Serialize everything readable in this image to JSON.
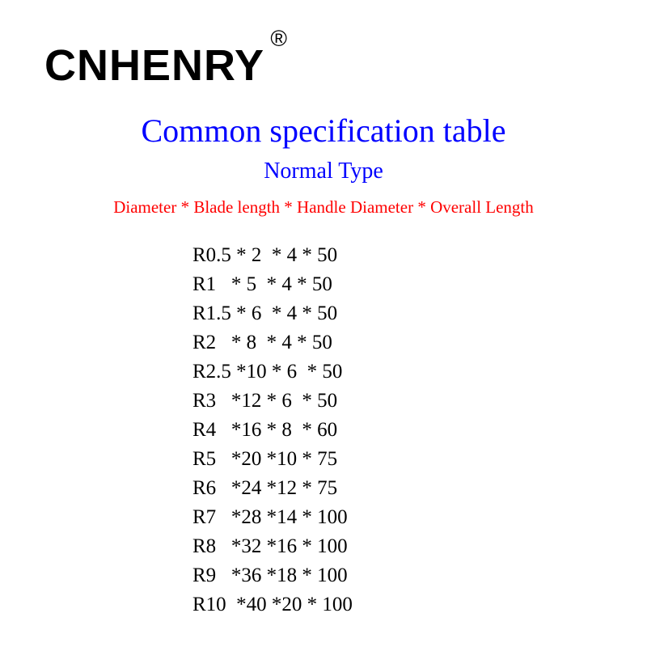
{
  "brand": {
    "name": "CNHENRY",
    "registered_symbol": "®"
  },
  "title": "Common specification table",
  "subtitle": "Normal Type",
  "column_legend": "Diameter * Blade length * Handle Diameter * Overall Length",
  "colors": {
    "brand_text": "#000000",
    "title_text": "#0000ff",
    "subtitle_text": "#0000ff",
    "legend_text": "#ff0000",
    "data_text": "#000000",
    "background": "#ffffff"
  },
  "typography": {
    "brand_fontsize": 54,
    "title_fontsize": 40,
    "subtitle_fontsize": 28,
    "legend_fontsize": 21,
    "data_fontsize": 25,
    "brand_font": "Arial",
    "content_font": "Times New Roman"
  },
  "specs": {
    "type": "table",
    "columns": [
      "Diameter",
      "Blade length",
      "Handle Diameter",
      "Overall Length"
    ],
    "separator": "*",
    "rows": [
      {
        "diameter": "R0.5",
        "blade_length": "2",
        "handle_diameter": "4",
        "overall_length": "50",
        "formatted": "R0.5 * 2  * 4 * 50"
      },
      {
        "diameter": "R1",
        "blade_length": "5",
        "handle_diameter": "4",
        "overall_length": "50",
        "formatted": "R1   * 5  * 4 * 50"
      },
      {
        "diameter": "R1.5",
        "blade_length": "6",
        "handle_diameter": "4",
        "overall_length": "50",
        "formatted": "R1.5 * 6  * 4 * 50"
      },
      {
        "diameter": "R2",
        "blade_length": "8",
        "handle_diameter": "4",
        "overall_length": "50",
        "formatted": "R2   * 8  * 4 * 50"
      },
      {
        "diameter": "R2.5",
        "blade_length": "10",
        "handle_diameter": "6",
        "overall_length": "50",
        "formatted": "R2.5 *10 * 6  * 50"
      },
      {
        "diameter": "R3",
        "blade_length": "12",
        "handle_diameter": "6",
        "overall_length": "50",
        "formatted": "R3   *12 * 6  * 50"
      },
      {
        "diameter": "R4",
        "blade_length": "16",
        "handle_diameter": "8",
        "overall_length": "60",
        "formatted": "R4   *16 * 8  * 60"
      },
      {
        "diameter": "R5",
        "blade_length": "20",
        "handle_diameter": "10",
        "overall_length": "75",
        "formatted": "R5   *20 *10 * 75"
      },
      {
        "diameter": "R6",
        "blade_length": "24",
        "handle_diameter": "12",
        "overall_length": "75",
        "formatted": "R6   *24 *12 * 75"
      },
      {
        "diameter": "R7",
        "blade_length": "28",
        "handle_diameter": "14",
        "overall_length": "100",
        "formatted": "R7   *28 *14 * 100"
      },
      {
        "diameter": "R8",
        "blade_length": "32",
        "handle_diameter": "16",
        "overall_length": "100",
        "formatted": "R8   *32 *16 * 100"
      },
      {
        "diameter": "R9",
        "blade_length": "36",
        "handle_diameter": "18",
        "overall_length": "100",
        "formatted": "R9   *36 *18 * 100"
      },
      {
        "diameter": "R10",
        "blade_length": "40",
        "handle_diameter": "20",
        "overall_length": "100",
        "formatted": "R10  *40 *20 * 100"
      }
    ]
  }
}
